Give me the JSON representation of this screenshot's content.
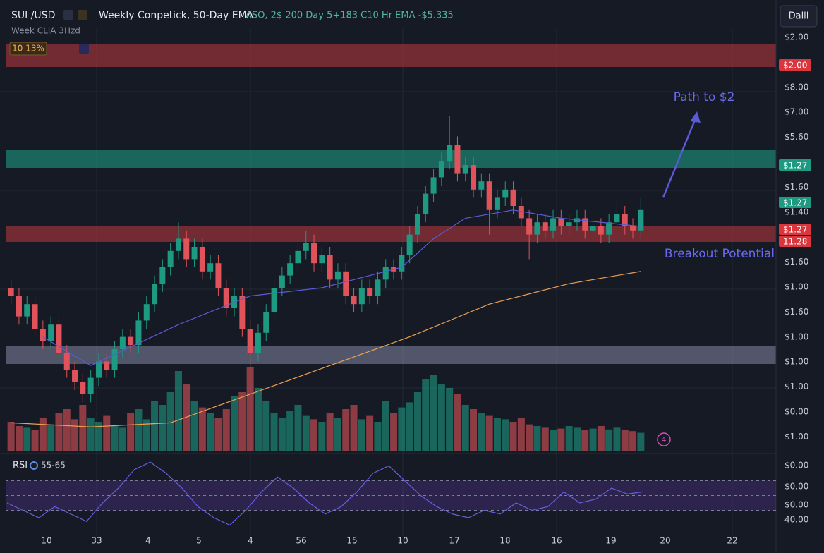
{
  "chart_data": {
    "type": "candlestick",
    "title": "SUI /USD",
    "subtitle": "Weekly Conpetick, 50-Day EMA",
    "indicator_text": "ΛSO,  2$  200 Day 5+183  C10 Hr EMA -$5.335",
    "legend_note": "Week CLIA 3Hzd",
    "change_badge": "10 13%",
    "interval": "Daill",
    "annotations": [
      "Path to $2",
      "Breakout Potential"
    ],
    "rsi_label": "RSI",
    "rsi_range": "55-65",
    "icon_badge": "4",
    "up_color": "#1f9a82",
    "down_color": "#e0535a",
    "ylim": [
      0,
      100
    ],
    "candles": [
      [
        40,
        42,
        36,
        38
      ],
      [
        38,
        40,
        31,
        33
      ],
      [
        33,
        38,
        31,
        36
      ],
      [
        36,
        38,
        28,
        30
      ],
      [
        30,
        32,
        25,
        27
      ],
      [
        27,
        33,
        25,
        31
      ],
      [
        31,
        33,
        22,
        24
      ],
      [
        24,
        26,
        18,
        20
      ],
      [
        20,
        22,
        15,
        17
      ],
      [
        17,
        19,
        12,
        14
      ],
      [
        14,
        20,
        12,
        18
      ],
      [
        18,
        24,
        16,
        22
      ],
      [
        22,
        24,
        18,
        20
      ],
      [
        20,
        27,
        18,
        25
      ],
      [
        25,
        30,
        23,
        28
      ],
      [
        28,
        30,
        24,
        26
      ],
      [
        26,
        34,
        24,
        32
      ],
      [
        32,
        38,
        30,
        36
      ],
      [
        36,
        43,
        34,
        41
      ],
      [
        41,
        47,
        39,
        45
      ],
      [
        45,
        51,
        43,
        49
      ],
      [
        49,
        56,
        47,
        52
      ],
      [
        52,
        54,
        45,
        47
      ],
      [
        47,
        52,
        45,
        50
      ],
      [
        50,
        52,
        42,
        44
      ],
      [
        44,
        48,
        42,
        46
      ],
      [
        46,
        48,
        38,
        40
      ],
      [
        40,
        42,
        33,
        35
      ],
      [
        35,
        40,
        33,
        38
      ],
      [
        38,
        40,
        28,
        30
      ],
      [
        30,
        32,
        20,
        24
      ],
      [
        24,
        31,
        22,
        29
      ],
      [
        29,
        36,
        27,
        34
      ],
      [
        34,
        42,
        32,
        40
      ],
      [
        40,
        45,
        38,
        43
      ],
      [
        43,
        48,
        41,
        46
      ],
      [
        46,
        51,
        44,
        49
      ],
      [
        49,
        54,
        47,
        51
      ],
      [
        51,
        53,
        44,
        46
      ],
      [
        46,
        50,
        44,
        48
      ],
      [
        48,
        50,
        40,
        42
      ],
      [
        42,
        46,
        40,
        44
      ],
      [
        44,
        46,
        36,
        38
      ],
      [
        38,
        40,
        34,
        36
      ],
      [
        36,
        42,
        34,
        40
      ],
      [
        40,
        42,
        36,
        38
      ],
      [
        38,
        44,
        36,
        42
      ],
      [
        42,
        47,
        40,
        45
      ],
      [
        45,
        47,
        42,
        44
      ],
      [
        44,
        50,
        42,
        48
      ],
      [
        48,
        55,
        46,
        53
      ],
      [
        53,
        60,
        51,
        58
      ],
      [
        58,
        65,
        56,
        63
      ],
      [
        63,
        69,
        61,
        67
      ],
      [
        67,
        73,
        65,
        71
      ],
      [
        71,
        82,
        69,
        75
      ],
      [
        75,
        77,
        66,
        68
      ],
      [
        68,
        72,
        66,
        70
      ],
      [
        70,
        72,
        62,
        64
      ],
      [
        64,
        68,
        62,
        66
      ],
      [
        66,
        68,
        53,
        59
      ],
      [
        59,
        64,
        57,
        62
      ],
      [
        62,
        66,
        60,
        64
      ],
      [
        64,
        66,
        58,
        60
      ],
      [
        60,
        62,
        55,
        57
      ],
      [
        57,
        59,
        47,
        53
      ],
      [
        53,
        58,
        51,
        56
      ],
      [
        56,
        58,
        52,
        54
      ],
      [
        54,
        59,
        52,
        57
      ],
      [
        57,
        59,
        53,
        55
      ],
      [
        55,
        58,
        53,
        56
      ],
      [
        56,
        59,
        54,
        57
      ],
      [
        57,
        59,
        52,
        54
      ],
      [
        54,
        57,
        52,
        55
      ],
      [
        55,
        57,
        51,
        53
      ],
      [
        53,
        58,
        51,
        56
      ],
      [
        56,
        62,
        54,
        58
      ],
      [
        58,
        60,
        53,
        55
      ],
      [
        55,
        57,
        52,
        54
      ],
      [
        54,
        62,
        52,
        59
      ]
    ],
    "volume_ylim": [
      0,
      100
    ],
    "volume": [
      35,
      30,
      28,
      25,
      40,
      32,
      45,
      50,
      38,
      55,
      40,
      35,
      42,
      30,
      28,
      45,
      50,
      38,
      60,
      55,
      70,
      95,
      80,
      60,
      52,
      45,
      40,
      50,
      65,
      70,
      100,
      75,
      60,
      45,
      40,
      48,
      55,
      42,
      38,
      35,
      45,
      40,
      50,
      55,
      38,
      42,
      35,
      60,
      45,
      52,
      58,
      70,
      85,
      90,
      80,
      75,
      68,
      55,
      50,
      45,
      42,
      40,
      38,
      35,
      40,
      32,
      30,
      28,
      25,
      27,
      30,
      28,
      25,
      27,
      30,
      26,
      28,
      25,
      24,
      22
    ],
    "lines": [
      {
        "color": "#5b5bd6",
        "x": [
          4,
          10,
          21,
          30,
          39,
          49,
          53,
          57,
          63,
          69,
          79
        ],
        "values": [
          28,
          21,
          31,
          38,
          40,
          45,
          52,
          57,
          59,
          57,
          55
        ]
      },
      {
        "color": "#f0a050",
        "x": [
          0,
          10,
          20,
          30,
          40,
          50,
          60,
          70,
          79
        ],
        "values": [
          7,
          6,
          7,
          14,
          21,
          28,
          36,
          41,
          44
        ]
      }
    ],
    "rsi_ylim": [
      0,
      100
    ],
    "rsi_levels": [
      70,
      50,
      30
    ],
    "rsi_color": "#6a5de0",
    "rsi": [
      40,
      30,
      20,
      35,
      25,
      15,
      40,
      60,
      85,
      95,
      80,
      60,
      35,
      20,
      10,
      30,
      55,
      75,
      60,
      40,
      25,
      35,
      55,
      80,
      90,
      70,
      50,
      35,
      25,
      20,
      30,
      25,
      40,
      30,
      35,
      55,
      40,
      45,
      60,
      52,
      55
    ],
    "price_axis_labels": [
      "$2.00",
      "$8.00",
      "$7.00",
      "$5.60",
      "$1.60",
      "$1.40",
      "$1.60",
      "$1.00",
      "$1.60",
      "$1.00",
      "$1.00",
      "$1.00",
      "$0.00",
      "$1.00"
    ],
    "rsi_axis_labels": [
      "$0.00",
      "$0.00",
      "$0.00",
      "40.00"
    ],
    "price_tags": [
      {
        "label": "$2.00",
        "color": "#d9363e"
      },
      {
        "label": "$1.27",
        "color": "#1f9a82"
      },
      {
        "label": "$1.27",
        "color": "#1f9a82"
      },
      {
        "label": "$1.27",
        "color": "#d9363e"
      },
      {
        "label": "11.28",
        "color": "#d9363e"
      }
    ],
    "x_labels": [
      "10",
      "33",
      "4",
      "5",
      "4",
      "56",
      "15",
      "10",
      "17",
      "18",
      "16",
      "19",
      "20",
      "22"
    ]
  }
}
